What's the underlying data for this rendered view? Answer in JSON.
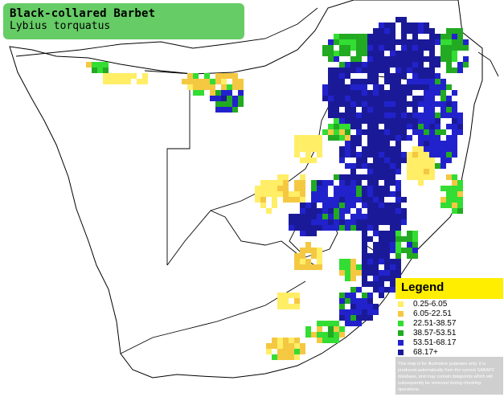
{
  "title": {
    "common_name": "Black-collared Barbet",
    "scientific_name": "Lybius torquatus"
  },
  "legend": {
    "heading": "Legend",
    "items": [
      {
        "label": "0.25-6.05",
        "color": "#ffee66"
      },
      {
        "label": "6.05-22.51",
        "color": "#f5c842"
      },
      {
        "label": "22.51-38.57",
        "color": "#33dd33"
      },
      {
        "label": "38.57-53.51",
        "color": "#22aa22"
      },
      {
        "label": "53.51-68.17",
        "color": "#2222cc"
      },
      {
        "label": "68.17+",
        "color": "#1a1a99"
      }
    ],
    "disclaimer": "This map is for illustrative purposes only; it is produced automatically from the current SABAP2 database, and may contain datapoints which will subsequently be removed during checking operations."
  },
  "colors": {
    "title_background": "#66cc66",
    "legend_heading_background": "#ffee00",
    "legend_panel": "#cfcfcf"
  }
}
